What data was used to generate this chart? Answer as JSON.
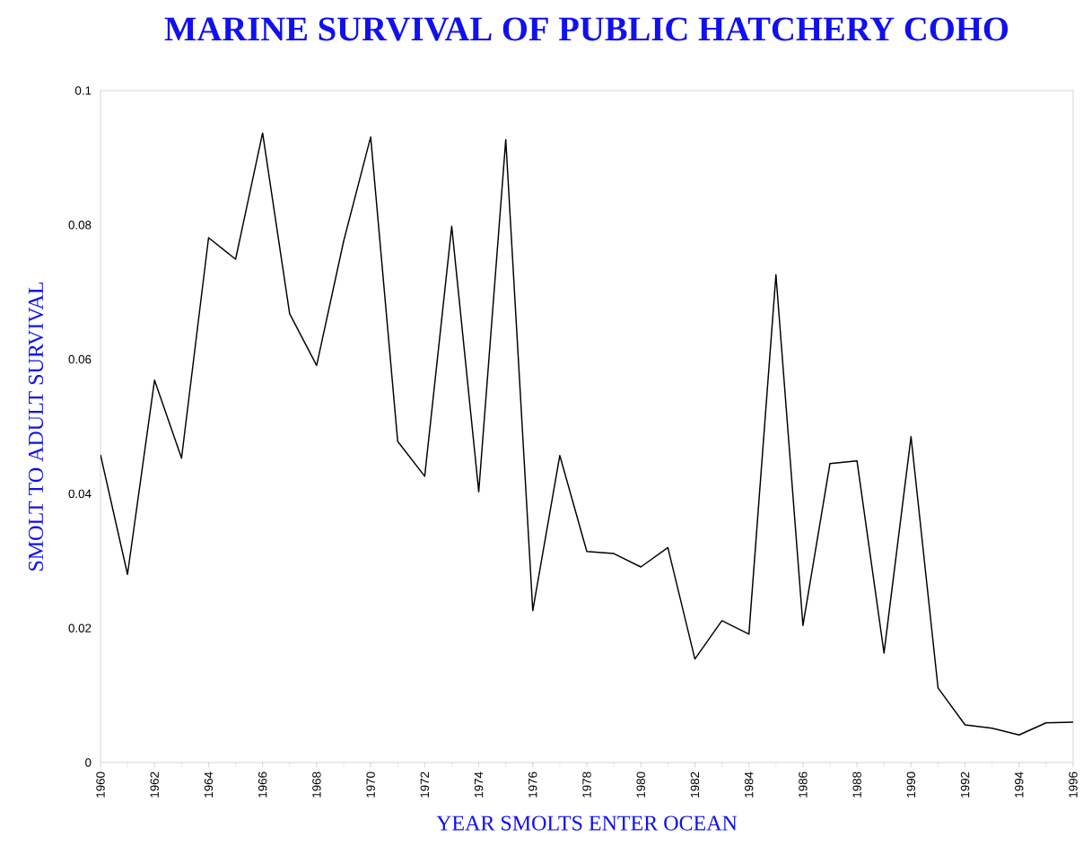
{
  "chart_data": {
    "type": "line",
    "title": "MARINE SURVIVAL OF PUBLIC HATCHERY COHO",
    "xlabel": "YEAR SMOLTS ENTER OCEAN",
    "ylabel": "SMOLT TO ADULT SURVIVAL",
    "x": [
      1960,
      1961,
      1962,
      1963,
      1964,
      1965,
      1966,
      1967,
      1968,
      1969,
      1970,
      1971,
      1972,
      1973,
      1974,
      1975,
      1976,
      1977,
      1978,
      1979,
      1980,
      1981,
      1982,
      1983,
      1984,
      1985,
      1986,
      1987,
      1988,
      1989,
      1990,
      1991,
      1992,
      1993,
      1994,
      1995,
      1996
    ],
    "series": [
      {
        "color": "#000000",
        "values": [
          0.0458,
          0.028,
          0.0569,
          0.0453,
          0.0781,
          0.0749,
          0.0937,
          0.0668,
          0.0591,
          0.0776,
          0.0931,
          0.0478,
          0.0426,
          0.0798,
          0.0403,
          0.0927,
          0.0226,
          0.0457,
          0.0314,
          0.0311,
          0.0291,
          0.032,
          0.0154,
          0.0211,
          0.0191,
          0.0726,
          0.0204,
          0.0445,
          0.0449,
          0.0163,
          0.0485,
          0.0111,
          0.0056,
          0.0051,
          0.0041,
          0.0059,
          0.006
        ]
      }
    ],
    "xlim": [
      1960,
      1996
    ],
    "ylim": [
      0,
      0.1
    ],
    "xticks": [
      1960,
      1962,
      1964,
      1966,
      1968,
      1970,
      1972,
      1974,
      1976,
      1978,
      1980,
      1982,
      1984,
      1986,
      1988,
      1990,
      1992,
      1994,
      1996
    ],
    "yticks": [
      0,
      0.02,
      0.04,
      0.06,
      0.08,
      0.1
    ],
    "marker": "none",
    "line_style": "solid"
  }
}
